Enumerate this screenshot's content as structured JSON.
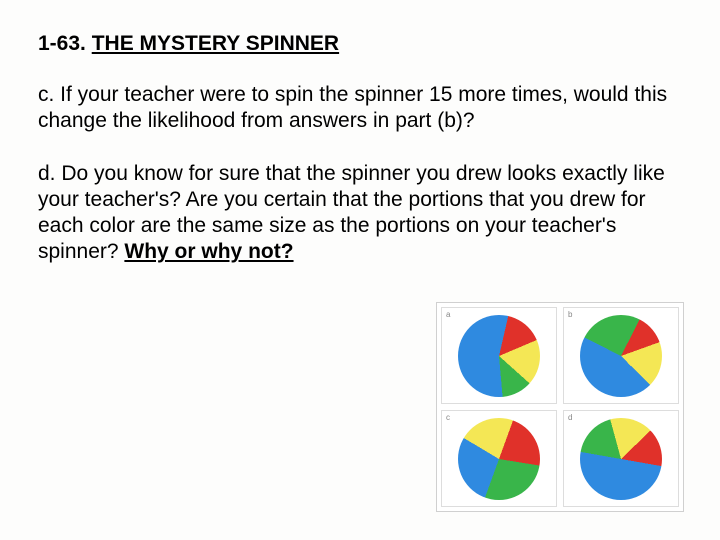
{
  "heading": {
    "number": "1-63.",
    "title": "THE MYSTERY SPINNER"
  },
  "paragraph_c": "c. If your teacher were to spin the spinner 15 more times, would this change the likelihood from answers in part (b)?",
  "paragraph_d_prefix": "d. Do you know for sure that the spinner you drew looks exactly like your teacher's?  Are you certain that the portions that you drew for each color are the same size as the portions on your teacher's spinner?  ",
  "paragraph_d_underline": "Why or why not?",
  "colors": {
    "blue": "#2f8ae0",
    "red": "#e0312a",
    "yellow": "#f4e755",
    "green": "#39b54a"
  },
  "spinners": [
    {
      "label": "a",
      "slices": [
        {
          "color": "blue",
          "pct": 55
        },
        {
          "color": "red",
          "pct": 15
        },
        {
          "color": "yellow",
          "pct": 18
        },
        {
          "color": "green",
          "pct": 12
        }
      ],
      "rotation": 175
    },
    {
      "label": "b",
      "slices": [
        {
          "color": "blue",
          "pct": 45
        },
        {
          "color": "green",
          "pct": 25
        },
        {
          "color": "red",
          "pct": 12
        },
        {
          "color": "yellow",
          "pct": 18
        }
      ],
      "rotation": 135
    },
    {
      "label": "c",
      "slices": [
        {
          "color": "blue",
          "pct": 28
        },
        {
          "color": "yellow",
          "pct": 22
        },
        {
          "color": "red",
          "pct": 22
        },
        {
          "color": "green",
          "pct": 28
        }
      ],
      "rotation": 200
    },
    {
      "label": "d",
      "slices": [
        {
          "color": "blue",
          "pct": 50
        },
        {
          "color": "green",
          "pct": 18
        },
        {
          "color": "yellow",
          "pct": 17
        },
        {
          "color": "red",
          "pct": 15
        }
      ],
      "rotation": 100
    }
  ]
}
